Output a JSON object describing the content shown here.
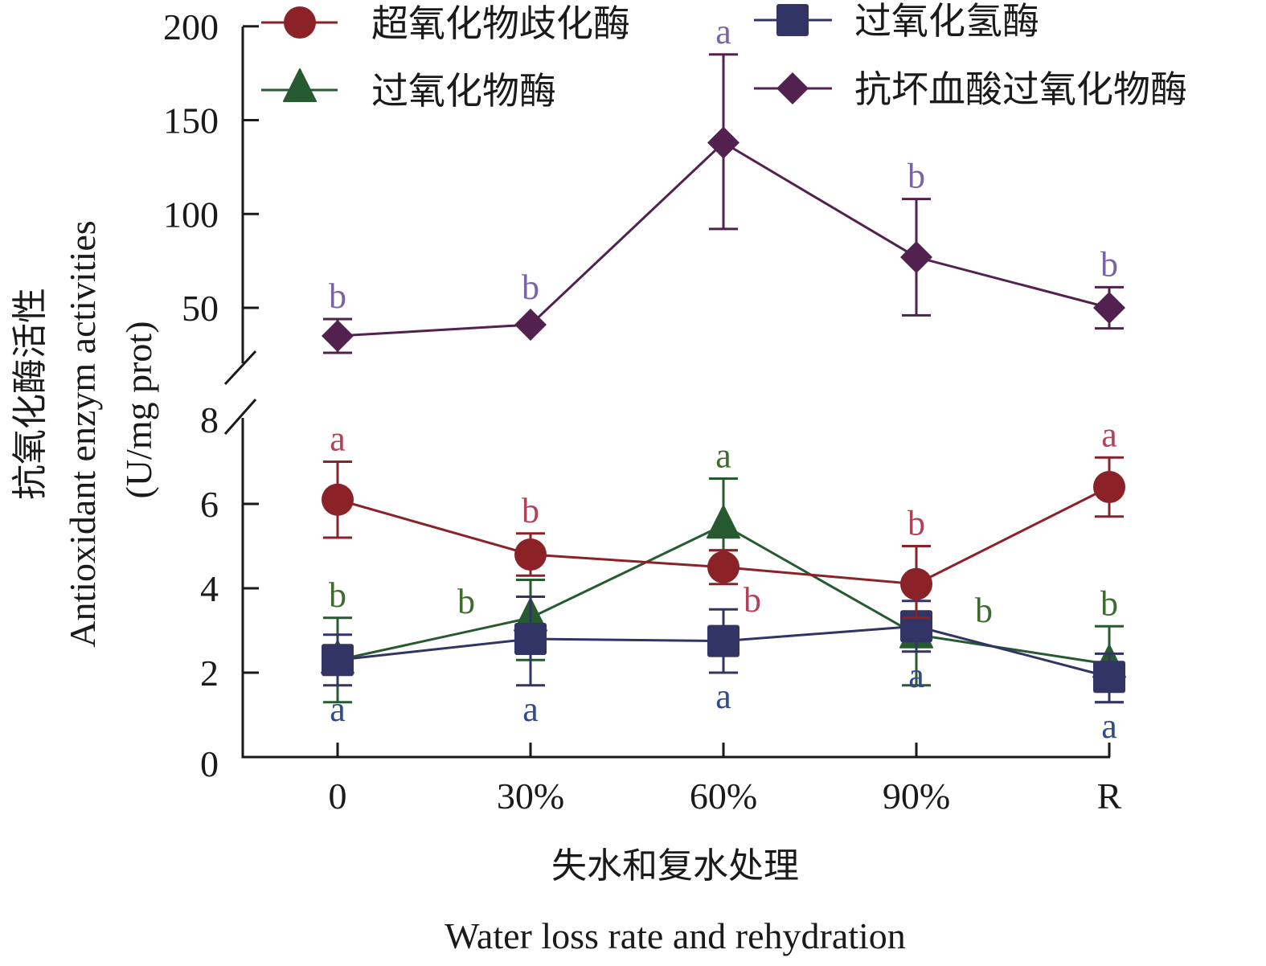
{
  "chart_data": {
    "type": "line",
    "title": "",
    "xlabel": "失水和复水处理",
    "xlabel_en": "Water loss rate and rehydration",
    "ylabel": "抗氧化酶活性",
    "ylabel_en": "Antioxidant enzym activities",
    "ylabel_unit": "(U/mg prot)",
    "categories": [
      "0",
      "30%",
      "60%",
      "90%",
      "R"
    ],
    "y_axis_broken": true,
    "ylim_lower": [
      0,
      8
    ],
    "ylim_upper": [
      25,
      200
    ],
    "yticks_lower": [
      "0",
      "2",
      "4",
      "6",
      "8"
    ],
    "yticks_upper": [
      "50",
      "100",
      "150",
      "200"
    ],
    "legend_position": "top",
    "series": [
      {
        "name": "超氧化物歧化酶",
        "marker": "circle",
        "color": "#8B2228",
        "letter_color": "#B04358",
        "panel": "lower",
        "values": [
          6.1,
          4.8,
          4.5,
          4.1,
          6.4
        ],
        "err_upper": [
          7.0,
          5.3,
          4.9,
          5.0,
          7.1
        ],
        "err_lower": [
          5.2,
          4.3,
          4.1,
          3.3,
          5.7
        ],
        "letters": [
          "a",
          "b",
          "b",
          "b",
          "a"
        ]
      },
      {
        "name": "过氧化物酶",
        "marker": "triangle",
        "color": "#285A32",
        "letter_color": "#3E6B2F",
        "panel": "lower",
        "values": [
          2.3,
          3.3,
          5.5,
          2.9,
          2.2
        ],
        "err_upper": [
          3.3,
          4.2,
          6.6,
          3.4,
          3.1
        ],
        "err_lower": [
          1.3,
          2.3,
          4.9,
          1.7,
          1.3
        ],
        "letters": [
          "b",
          "b",
          "a",
          "b",
          "b"
        ]
      },
      {
        "name": "过氧化氢酶",
        "marker": "square",
        "color": "#313465",
        "letter_color": "#304A87",
        "panel": "lower",
        "values": [
          2.3,
          2.8,
          2.75,
          3.1,
          1.9
        ],
        "err_upper": [
          2.9,
          3.8,
          3.5,
          3.7,
          2.45
        ],
        "err_lower": [
          1.7,
          1.7,
          2.0,
          2.5,
          1.3
        ],
        "letters": [
          "a",
          "a",
          "a",
          "a",
          "a"
        ]
      },
      {
        "name": "抗坏血酸过氧化物酶",
        "marker": "diamond",
        "color": "#52214F",
        "letter_color": "#7A64A8",
        "panel": "upper",
        "values": [
          35,
          41,
          138,
          77,
          50
        ],
        "err_upper": [
          44,
          41,
          185,
          108,
          61
        ],
        "err_lower": [
          26,
          41,
          92,
          46,
          39
        ],
        "letters": [
          "b",
          "b",
          "a",
          "b",
          "b"
        ]
      }
    ]
  }
}
